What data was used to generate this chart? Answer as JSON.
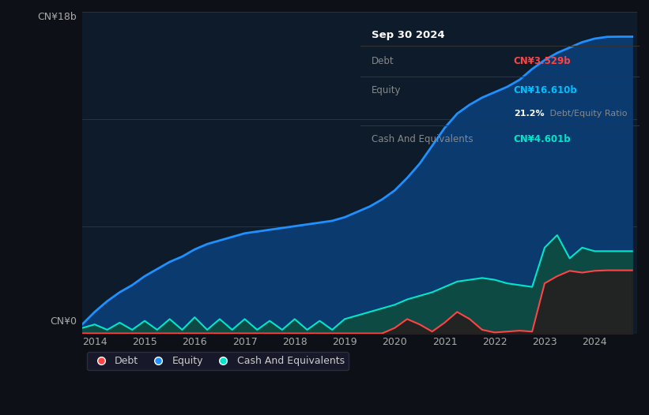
{
  "bg_color": "#0d1117",
  "plot_bg_color": "#0d1b2a",
  "title_box": {
    "date": "Sep 30 2024",
    "debt_label": "Debt",
    "debt_value": "CN¥3.529b",
    "debt_color": "#ff4444",
    "equity_label": "Equity",
    "equity_value": "CN¥16.610b",
    "equity_color": "#00bfff",
    "ratio_bold": "21.2%",
    "ratio_text": " Debt/Equity Ratio",
    "cash_label": "Cash And Equivalents",
    "cash_value": "CN¥4.601b",
    "cash_color": "#00e5cc"
  },
  "ylabel_top": "CN¥18b",
  "ylabel_bottom": "CN¥0",
  "x_ticks": [
    2014,
    2015,
    2016,
    2017,
    2018,
    2019,
    2020,
    2021,
    2022,
    2023,
    2024
  ],
  "debt_color": "#ff4444",
  "equity_color": "#1e90ff",
  "cash_color": "#00e5cc",
  "equity_fill_color": "#0a3a6e",
  "cash_fill_color": "#0d4a44",
  "legend_items": [
    "Debt",
    "Equity",
    "Cash And Equivalents"
  ],
  "years": [
    2013.75,
    2014.0,
    2014.25,
    2014.5,
    2014.75,
    2015.0,
    2015.25,
    2015.5,
    2015.75,
    2016.0,
    2016.25,
    2016.5,
    2016.75,
    2017.0,
    2017.25,
    2017.5,
    2017.75,
    2018.0,
    2018.25,
    2018.5,
    2018.75,
    2019.0,
    2019.25,
    2019.5,
    2019.75,
    2020.0,
    2020.25,
    2020.5,
    2020.75,
    2021.0,
    2021.25,
    2021.5,
    2021.75,
    2022.0,
    2022.25,
    2022.5,
    2022.75,
    2023.0,
    2023.25,
    2023.5,
    2023.75,
    2024.0,
    2024.25,
    2024.5,
    2024.75
  ],
  "equity": [
    0.5,
    1.2,
    1.8,
    2.3,
    2.7,
    3.2,
    3.6,
    4.0,
    4.3,
    4.7,
    5.0,
    5.2,
    5.4,
    5.6,
    5.7,
    5.8,
    5.9,
    6.0,
    6.1,
    6.2,
    6.3,
    6.5,
    6.8,
    7.1,
    7.5,
    8.0,
    8.7,
    9.5,
    10.5,
    11.5,
    12.3,
    12.8,
    13.2,
    13.5,
    13.8,
    14.2,
    14.8,
    15.3,
    15.7,
    16.0,
    16.3,
    16.5,
    16.6,
    16.61,
    16.61
  ],
  "debt": [
    0.0,
    0.0,
    0.0,
    0.0,
    0.0,
    0.0,
    0.0,
    0.0,
    0.0,
    0.0,
    0.0,
    0.0,
    0.0,
    0.0,
    0.0,
    0.0,
    0.0,
    0.0,
    0.0,
    0.0,
    0.0,
    0.0,
    0.0,
    0.0,
    0.0,
    0.3,
    0.8,
    0.5,
    0.1,
    0.6,
    1.2,
    0.8,
    0.2,
    0.05,
    0.1,
    0.15,
    0.1,
    2.8,
    3.2,
    3.5,
    3.4,
    3.5,
    3.53,
    3.529,
    3.529
  ],
  "cash": [
    0.3,
    0.5,
    0.2,
    0.6,
    0.2,
    0.7,
    0.2,
    0.8,
    0.2,
    0.9,
    0.2,
    0.8,
    0.2,
    0.8,
    0.2,
    0.7,
    0.2,
    0.8,
    0.2,
    0.7,
    0.2,
    0.8,
    1.0,
    1.2,
    1.4,
    1.6,
    1.9,
    2.1,
    2.3,
    2.6,
    2.9,
    3.0,
    3.1,
    3.0,
    2.8,
    2.7,
    2.6,
    4.8,
    5.5,
    4.2,
    4.8,
    4.6,
    4.601,
    4.601,
    4.601
  ],
  "ylim": [
    0,
    18
  ],
  "xlim": [
    2013.75,
    2024.85
  ]
}
